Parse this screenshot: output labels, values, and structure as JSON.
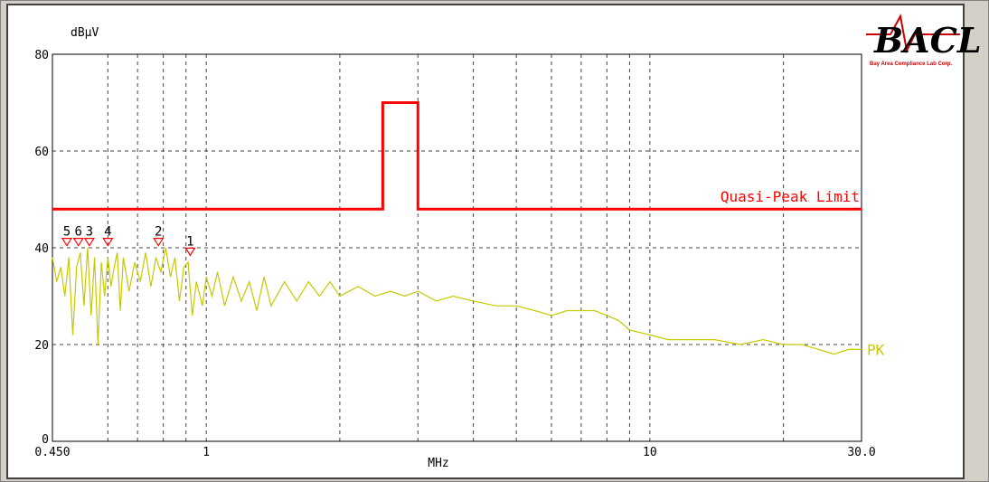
{
  "chart_data": {
    "type": "line",
    "xlabel": "MHz",
    "ylabel": "dBμV",
    "xscale": "log",
    "xlim": [
      0.45,
      30.0
    ],
    "ylim": [
      0,
      80
    ],
    "x_tick_labels": [
      "0.450",
      "1",
      "10",
      "30.0"
    ],
    "x_tick_values": [
      0.45,
      1,
      10,
      30.0
    ],
    "y_ticks": [
      0,
      20,
      40,
      60,
      80
    ],
    "grid": true,
    "series": [
      {
        "name": "Quasi-Peak Limit",
        "color": "#ff0000",
        "points": [
          [
            0.45,
            48
          ],
          [
            2.5,
            48
          ],
          [
            2.5,
            70
          ],
          [
            3.0,
            70
          ],
          [
            3.0,
            48
          ],
          [
            30.0,
            48
          ]
        ]
      },
      {
        "name": "PK",
        "color": "#c8c800",
        "points": [
          [
            0.45,
            38
          ],
          [
            0.46,
            33
          ],
          [
            0.47,
            36
          ],
          [
            0.48,
            30
          ],
          [
            0.49,
            38
          ],
          [
            0.5,
            22
          ],
          [
            0.51,
            36
          ],
          [
            0.52,
            39
          ],
          [
            0.53,
            28
          ],
          [
            0.54,
            40
          ],
          [
            0.55,
            26
          ],
          [
            0.56,
            38
          ],
          [
            0.57,
            20
          ],
          [
            0.58,
            37
          ],
          [
            0.59,
            30
          ],
          [
            0.6,
            38
          ],
          [
            0.61,
            32
          ],
          [
            0.62,
            36
          ],
          [
            0.63,
            39
          ],
          [
            0.64,
            27
          ],
          [
            0.65,
            38
          ],
          [
            0.67,
            31
          ],
          [
            0.69,
            37
          ],
          [
            0.71,
            33
          ],
          [
            0.73,
            39
          ],
          [
            0.75,
            32
          ],
          [
            0.77,
            38
          ],
          [
            0.79,
            35
          ],
          [
            0.81,
            40
          ],
          [
            0.83,
            34
          ],
          [
            0.85,
            38
          ],
          [
            0.87,
            29
          ],
          [
            0.89,
            36
          ],
          [
            0.91,
            37
          ],
          [
            0.93,
            26
          ],
          [
            0.95,
            33
          ],
          [
            0.98,
            28
          ],
          [
            1.0,
            34
          ],
          [
            1.03,
            30
          ],
          [
            1.06,
            35
          ],
          [
            1.1,
            28
          ],
          [
            1.15,
            34
          ],
          [
            1.2,
            29
          ],
          [
            1.25,
            33
          ],
          [
            1.3,
            27
          ],
          [
            1.35,
            34
          ],
          [
            1.4,
            28
          ],
          [
            1.5,
            33
          ],
          [
            1.6,
            29
          ],
          [
            1.7,
            33
          ],
          [
            1.8,
            30
          ],
          [
            1.9,
            33
          ],
          [
            2.0,
            30
          ],
          [
            2.2,
            32
          ],
          [
            2.4,
            30
          ],
          [
            2.6,
            31
          ],
          [
            2.8,
            30
          ],
          [
            3.0,
            31
          ],
          [
            3.3,
            29
          ],
          [
            3.6,
            30
          ],
          [
            4.0,
            29
          ],
          [
            4.5,
            28
          ],
          [
            5.0,
            28
          ],
          [
            5.5,
            27
          ],
          [
            6.0,
            26
          ],
          [
            6.5,
            27
          ],
          [
            7.0,
            27
          ],
          [
            7.5,
            27
          ],
          [
            8.0,
            26
          ],
          [
            8.5,
            25
          ],
          [
            9.0,
            23
          ],
          [
            10.0,
            22
          ],
          [
            11.0,
            21
          ],
          [
            12.0,
            21
          ],
          [
            14.0,
            21
          ],
          [
            16.0,
            20
          ],
          [
            18.0,
            21
          ],
          [
            20.0,
            20
          ],
          [
            22.0,
            20
          ],
          [
            24.0,
            19
          ],
          [
            26.0,
            18
          ],
          [
            28.0,
            19
          ],
          [
            30.0,
            19
          ]
        ]
      }
    ],
    "markers": [
      {
        "label": "1",
        "x": 0.92,
        "y": 39
      },
      {
        "label": "2",
        "x": 0.78,
        "y": 41
      },
      {
        "label": "3",
        "x": 0.545,
        "y": 41
      },
      {
        "label": "4",
        "x": 0.6,
        "y": 41
      },
      {
        "label": "5",
        "x": 0.485,
        "y": 41
      },
      {
        "label": "6",
        "x": 0.515,
        "y": 41
      }
    ]
  },
  "logo": {
    "text": "BACL",
    "subtext": "Bay Area Compliance Lab Corp."
  },
  "colors": {
    "grid": "#444444",
    "limit": "#ff0000",
    "trace": "#c8c800",
    "marker": "#ff0000"
  }
}
